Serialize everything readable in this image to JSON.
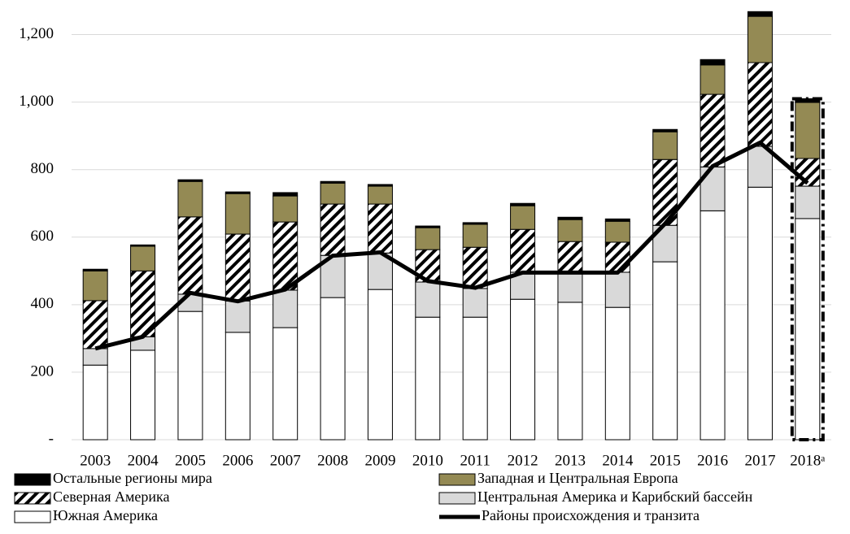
{
  "chart_data": {
    "type": "bar",
    "stacked": true,
    "grid": true,
    "categories": [
      "2003",
      "2004",
      "2005",
      "2006",
      "2007",
      "2008",
      "2009",
      "2010",
      "2011",
      "2012",
      "2013",
      "2014",
      "2015",
      "2016",
      "2017",
      "2018ᵃ"
    ],
    "series": [
      {
        "name": "Южная Америка",
        "color": "#ffffff",
        "values": [
          221,
          265,
          380,
          318,
          332,
          421,
          445,
          363,
          363,
          416,
          407,
          392,
          527,
          678,
          748,
          655
        ]
      },
      {
        "name": "Центральная Америка и Карибский бассейн",
        "color": "#d9d9d9",
        "values": [
          49,
          40,
          51,
          93,
          111,
          125,
          108,
          104,
          85,
          80,
          89,
          104,
          108,
          130,
          121,
          96
        ]
      },
      {
        "name": "Северная Америка",
        "color": "#000000",
        "fill_pattern": "diagonal-hatch",
        "values": [
          142,
          195,
          229,
          198,
          202,
          152,
          145,
          96,
          122,
          127,
          91,
          89,
          195,
          215,
          248,
          82
        ]
      },
      {
        "name": "Западная и Центральная Европа",
        "color": "#948a54",
        "values": [
          88,
          73,
          105,
          120,
          77,
          62,
          53,
          65,
          68,
          70,
          65,
          62,
          82,
          87,
          137,
          166
        ]
      },
      {
        "name": "Остальные регионы мира",
        "color": "#000000",
        "values": [
          5,
          4,
          5,
          5,
          10,
          5,
          5,
          5,
          5,
          7,
          7,
          7,
          7,
          16,
          14,
          11
        ]
      },
      {
        "name": "Районы происхождения и транзита",
        "type": "line",
        "color": "#000000",
        "values": [
          270,
          305,
          435,
          410,
          445,
          545,
          555,
          470,
          450,
          495,
          495,
          495,
          640,
          810,
          880,
          760
        ]
      }
    ],
    "dashed_last_bar": true,
    "ylim": [
      0,
      1300
    ],
    "yticks": [
      {
        "value": 0,
        "label": "-"
      },
      200,
      400,
      600,
      800,
      {
        "value": 1000,
        "label": "1,000"
      },
      {
        "value": 1200,
        "label": "1,200"
      }
    ]
  }
}
